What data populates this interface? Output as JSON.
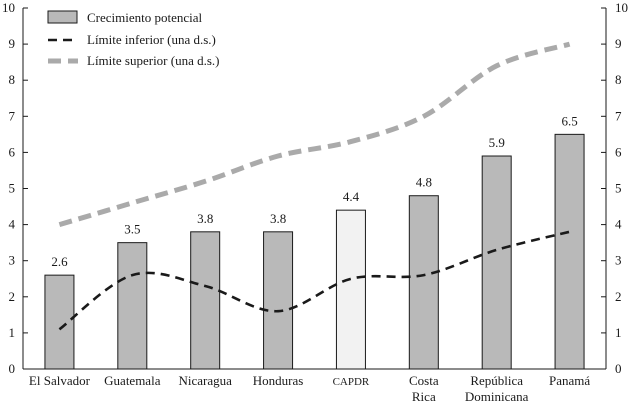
{
  "chart_data": {
    "type": "bar",
    "categories": [
      [
        "El Salvador"
      ],
      [
        "Guatemala"
      ],
      [
        "Nicaragua"
      ],
      [
        "Honduras"
      ],
      [
        "CAPDR"
      ],
      [
        "Costa",
        "Rica"
      ],
      [
        "República",
        "Dominicana"
      ],
      [
        "Panamá"
      ]
    ],
    "series": [
      {
        "name": "Crecimiento potencial",
        "type": "bar",
        "values": [
          2.6,
          3.5,
          3.8,
          3.8,
          4.4,
          4.8,
          5.9,
          6.5
        ],
        "labels": [
          "2.6",
          "3.5",
          "3.8",
          "3.8",
          "4.4",
          "4.8",
          "5.9",
          "6.5"
        ],
        "highlight_index": 4,
        "color": "#b9b9b9",
        "highlight_color": "#f2f2f2"
      },
      {
        "name": "Límite inferior (una d.s.)",
        "type": "line",
        "values": [
          1.1,
          2.6,
          2.3,
          1.6,
          2.5,
          2.6,
          3.3,
          3.8
        ],
        "color": "#1a1a1a",
        "style": "dashed"
      },
      {
        "name": "Límite superior (una d.s.)",
        "type": "line",
        "values": [
          4.0,
          4.6,
          5.2,
          5.9,
          6.3,
          7.0,
          8.4,
          9.0
        ],
        "color": "#aaaaaa",
        "style": "dashed"
      }
    ],
    "ylim": [
      0,
      10
    ],
    "yticks": [
      0,
      1,
      2,
      3,
      4,
      5,
      6,
      7,
      8,
      9,
      10
    ],
    "legend_position": "top-left",
    "title": "",
    "xlabel": "",
    "ylabel": ""
  }
}
